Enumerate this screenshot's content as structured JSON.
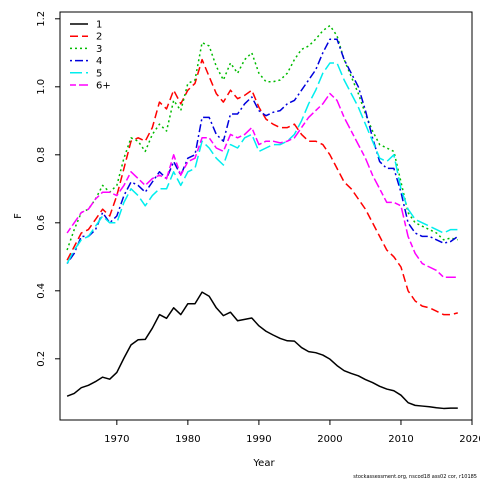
{
  "chart_data": {
    "type": "line",
    "xlabel": "Year",
    "ylabel": "F",
    "xlim": [
      1962,
      2020
    ],
    "ylim": [
      0.02,
      1.22
    ],
    "x_ticks": [
      1970,
      1980,
      1990,
      2000,
      2010,
      2020
    ],
    "y_ticks": [
      0.2,
      0.4,
      0.6,
      0.8,
      1.0,
      1.2
    ],
    "y_tick_labels": [
      "0.2",
      "0.4",
      "0.6",
      "0.8",
      "1.0",
      "1.2"
    ],
    "legend_position": "top-left",
    "footer": "stockassessment.org, nscod18 ass02 cor, r10185",
    "years": [
      1963,
      1964,
      1965,
      1966,
      1967,
      1968,
      1969,
      1970,
      1971,
      1972,
      1973,
      1974,
      1975,
      1976,
      1977,
      1978,
      1979,
      1980,
      1981,
      1982,
      1983,
      1984,
      1985,
      1986,
      1987,
      1988,
      1989,
      1990,
      1991,
      1992,
      1993,
      1994,
      1995,
      1996,
      1997,
      1998,
      1999,
      2000,
      2001,
      2002,
      2003,
      2004,
      2005,
      2006,
      2007,
      2008,
      2009,
      2010,
      2011,
      2012,
      2013,
      2014,
      2015,
      2016,
      2017,
      2018
    ],
    "series": [
      {
        "name": "1",
        "color": "#000000",
        "dash": "solid",
        "values": [
          0.09,
          0.098,
          0.115,
          0.122,
          0.133,
          0.146,
          0.14,
          0.16,
          0.202,
          0.241,
          0.256,
          0.257,
          0.29,
          0.33,
          0.319,
          0.35,
          0.33,
          0.362,
          0.362,
          0.396,
          0.384,
          0.35,
          0.327,
          0.337,
          0.312,
          0.316,
          0.32,
          0.297,
          0.281,
          0.27,
          0.26,
          0.253,
          0.252,
          0.233,
          0.221,
          0.218,
          0.211,
          0.199,
          0.18,
          0.165,
          0.157,
          0.15,
          0.139,
          0.13,
          0.119,
          0.111,
          0.106,
          0.093,
          0.071,
          0.063,
          0.061,
          0.059,
          0.056,
          0.054,
          0.055,
          0.055
        ]
      },
      {
        "name": "2",
        "color": "#ff0000",
        "dash": "long",
        "values": [
          0.49,
          0.53,
          0.57,
          0.58,
          0.61,
          0.64,
          0.62,
          0.68,
          0.76,
          0.84,
          0.85,
          0.84,
          0.88,
          0.955,
          0.935,
          0.99,
          0.95,
          0.99,
          1.01,
          1.08,
          1.03,
          0.98,
          0.955,
          0.99,
          0.965,
          0.975,
          0.99,
          0.94,
          0.905,
          0.89,
          0.88,
          0.88,
          0.89,
          0.86,
          0.84,
          0.84,
          0.83,
          0.8,
          0.76,
          0.72,
          0.7,
          0.67,
          0.64,
          0.6,
          0.56,
          0.52,
          0.5,
          0.47,
          0.4,
          0.37,
          0.355,
          0.35,
          0.34,
          0.33,
          0.33,
          0.335
        ]
      },
      {
        "name": "3",
        "color": "#00bb00",
        "dash": "dot",
        "values": [
          0.52,
          0.58,
          0.63,
          0.64,
          0.67,
          0.71,
          0.69,
          0.71,
          0.79,
          0.85,
          0.84,
          0.81,
          0.86,
          0.89,
          0.87,
          0.96,
          0.93,
          1.01,
          1.02,
          1.13,
          1.12,
          1.06,
          1.02,
          1.07,
          1.04,
          1.08,
          1.1,
          1.04,
          1.015,
          1.015,
          1.02,
          1.04,
          1.08,
          1.11,
          1.12,
          1.14,
          1.165,
          1.18,
          1.15,
          1.08,
          1.03,
          0.98,
          0.92,
          0.87,
          0.83,
          0.82,
          0.81,
          0.72,
          0.63,
          0.6,
          0.59,
          0.58,
          0.57,
          0.55,
          0.555,
          0.55
        ]
      },
      {
        "name": "4",
        "color": "#0000dd",
        "dash": "dotdash",
        "values": [
          0.48,
          0.51,
          0.56,
          0.56,
          0.58,
          0.63,
          0.6,
          0.62,
          0.68,
          0.72,
          0.71,
          0.69,
          0.72,
          0.75,
          0.73,
          0.78,
          0.74,
          0.79,
          0.8,
          0.91,
          0.91,
          0.86,
          0.84,
          0.92,
          0.92,
          0.95,
          0.97,
          0.93,
          0.915,
          0.925,
          0.93,
          0.95,
          0.96,
          0.99,
          1.02,
          1.05,
          1.1,
          1.14,
          1.14,
          1.08,
          1.04,
          1.0,
          0.93,
          0.85,
          0.78,
          0.76,
          0.76,
          0.69,
          0.6,
          0.57,
          0.56,
          0.56,
          0.55,
          0.54,
          0.545,
          0.56
        ]
      },
      {
        "name": "5",
        "color": "#00eeee",
        "dash": "longdash",
        "values": [
          0.48,
          0.52,
          0.55,
          0.56,
          0.59,
          0.62,
          0.6,
          0.6,
          0.66,
          0.7,
          0.68,
          0.65,
          0.68,
          0.7,
          0.7,
          0.75,
          0.71,
          0.75,
          0.76,
          0.84,
          0.82,
          0.79,
          0.77,
          0.83,
          0.82,
          0.85,
          0.86,
          0.81,
          0.82,
          0.83,
          0.83,
          0.84,
          0.86,
          0.9,
          0.95,
          0.99,
          1.04,
          1.07,
          1.07,
          1.02,
          0.98,
          0.94,
          0.89,
          0.84,
          0.79,
          0.78,
          0.8,
          0.7,
          0.64,
          0.61,
          0.6,
          0.59,
          0.58,
          0.57,
          0.58,
          0.58
        ]
      },
      {
        "name": "6+",
        "color": "#ff00ff",
        "dash": "twodash",
        "values": [
          0.57,
          0.6,
          0.63,
          0.64,
          0.67,
          0.69,
          0.69,
          0.68,
          0.71,
          0.75,
          0.73,
          0.71,
          0.73,
          0.74,
          0.73,
          0.8,
          0.74,
          0.78,
          0.79,
          0.85,
          0.85,
          0.82,
          0.81,
          0.86,
          0.85,
          0.86,
          0.88,
          0.83,
          0.84,
          0.84,
          0.835,
          0.84,
          0.85,
          0.88,
          0.91,
          0.93,
          0.95,
          0.98,
          0.96,
          0.91,
          0.87,
          0.83,
          0.79,
          0.74,
          0.7,
          0.66,
          0.66,
          0.65,
          0.56,
          0.51,
          0.48,
          0.47,
          0.46,
          0.44,
          0.44,
          0.44
        ]
      }
    ]
  }
}
